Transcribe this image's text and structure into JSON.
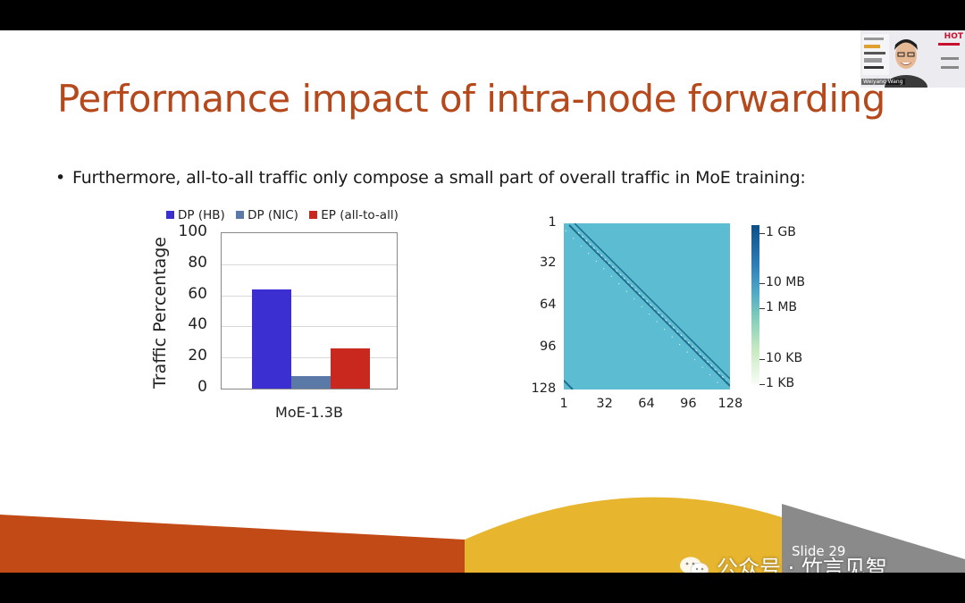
{
  "slide": {
    "title": "Performance impact of intra-node forwarding",
    "bullet_marker": "•",
    "bullet": "Furthermore, all-to-all traffic only compose a small part of overall traffic in MoE training:",
    "slide_number": "Slide 29"
  },
  "watermark": {
    "text": "公众号 · 竹言见智"
  },
  "webcam": {
    "name": "Weiyang Wang",
    "logo": "HOT"
  },
  "colors": {
    "title": "#b5491c",
    "dp_hb": "#3b2fd1",
    "dp_nic": "#5b79a6",
    "ep": "#c8281e",
    "heatmap_base": "#5bbcd2",
    "heatmap_diagonal": "#1e6c8c"
  },
  "chart_data": [
    {
      "type": "bar",
      "categories": [
        "MoE-1.3B"
      ],
      "series": [
        {
          "name": "DP (HB)",
          "values": [
            64
          ]
        },
        {
          "name": "DP (NIC)",
          "values": [
            8
          ]
        },
        {
          "name": "EP (all-to-all)",
          "values": [
            26
          ]
        }
      ],
      "ylabel": "Traffic Percentage",
      "xlabel": "",
      "ylim": [
        0,
        100
      ],
      "yticks": [
        "0",
        "20",
        "40",
        "60",
        "80",
        "100"
      ],
      "legend": "top",
      "grid": true
    },
    {
      "type": "heatmap",
      "x_ticks": [
        "1",
        "32",
        "64",
        "96",
        "128"
      ],
      "y_ticks": [
        "1",
        "32",
        "64",
        "96",
        "128"
      ],
      "xlim": [
        1,
        128
      ],
      "ylim": [
        1,
        128
      ],
      "colorbar_ticks": [
        "1 GB",
        "10 MB",
        "1 MB",
        "10 KB",
        "1 KB"
      ],
      "colorbar_scale": "log",
      "pattern": "uniform ~10 MB background with bright diagonal bands near the main diagonal"
    }
  ]
}
